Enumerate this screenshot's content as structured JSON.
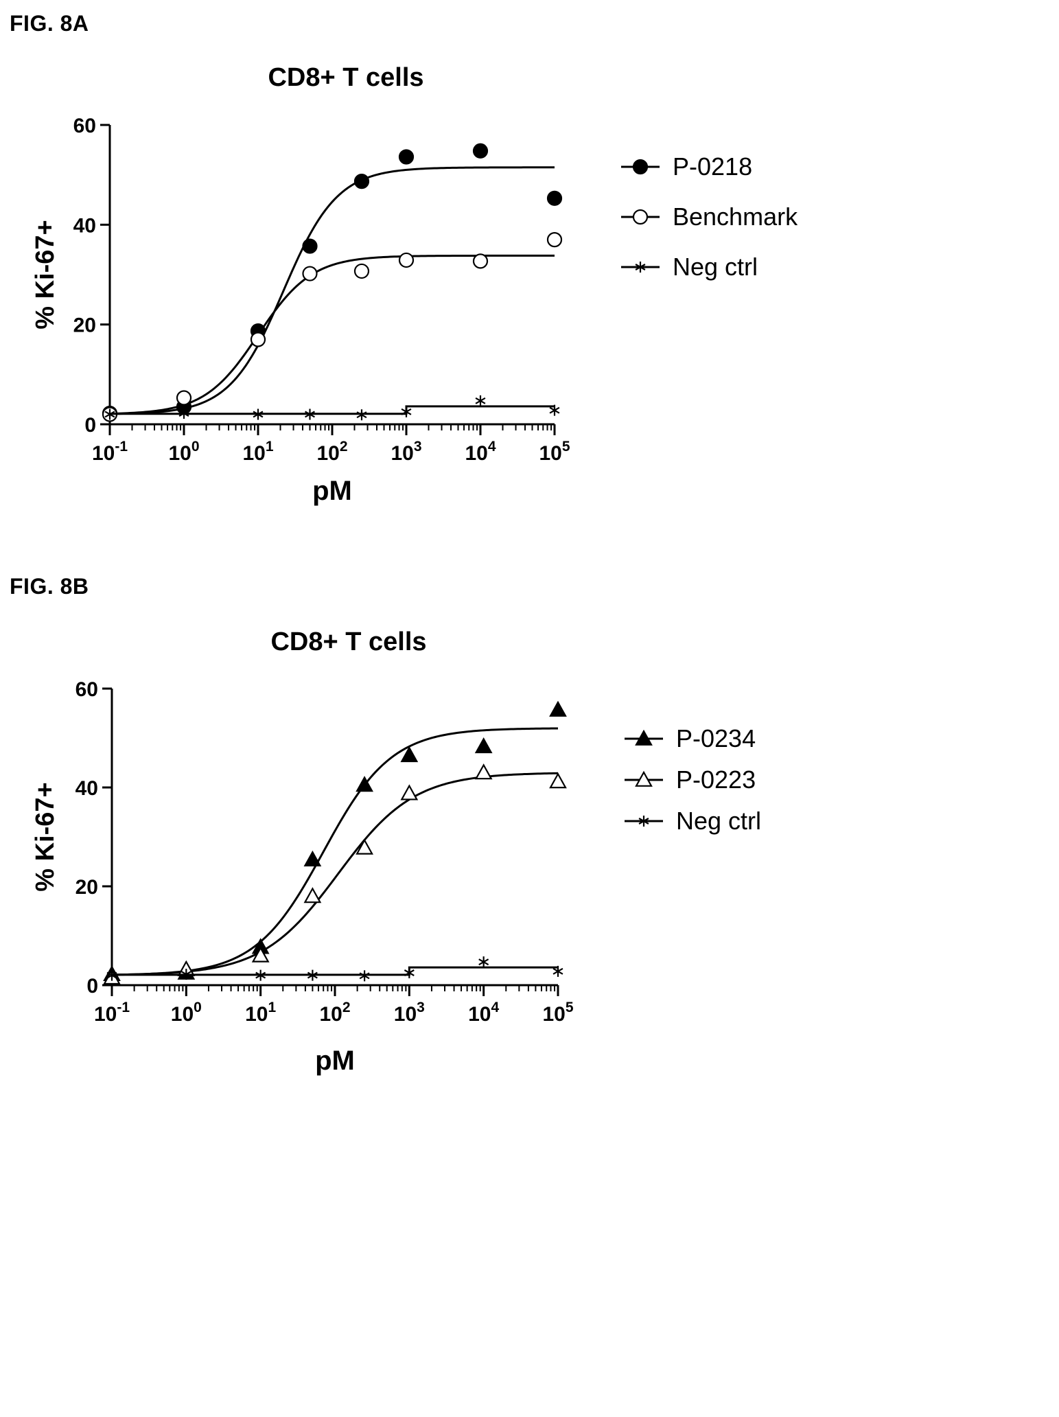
{
  "figures": [
    {
      "label": "FIG. 8A",
      "chart_data": {
        "type": "scatter",
        "title": "CD8+ T cells",
        "xlabel": "pM",
        "ylabel": "% Ki-67+",
        "xscale": "log",
        "xlim": [
          0.1,
          100000
        ],
        "ylim": [
          0,
          60
        ],
        "x_ticks": [
          {
            "value": 0.1,
            "base": "10",
            "exp": "-1"
          },
          {
            "value": 1,
            "base": "10",
            "exp": "0"
          },
          {
            "value": 10,
            "base": "10",
            "exp": "1"
          },
          {
            "value": 100,
            "base": "10",
            "exp": "2"
          },
          {
            "value": 1000,
            "base": "10",
            "exp": "3"
          },
          {
            "value": 10000,
            "base": "10",
            "exp": "4"
          },
          {
            "value": 100000,
            "base": "10",
            "exp": "5"
          }
        ],
        "y_ticks": [
          {
            "value": 0,
            "label": "0"
          },
          {
            "value": 20,
            "label": "20"
          },
          {
            "value": 40,
            "label": "40"
          },
          {
            "value": 60,
            "label": "60"
          }
        ],
        "grid": false,
        "legend_position": "right",
        "series": [
          {
            "name": "P-0218",
            "marker": "circle-filled",
            "color": "#000000",
            "x": [
              0.1,
              1,
              10,
              50,
              250,
              1000,
              10000,
              100000
            ],
            "y": [
              2.2,
              3.5,
              18.7,
              35.7,
              48.7,
              53.6,
              54.8,
              45.3
            ],
            "fit": {
              "bottom": 2.0,
              "top": 51.5,
              "ec50": 22,
              "hill": 1.2
            }
          },
          {
            "name": "Benchmark",
            "marker": "circle-open",
            "color": "#000000",
            "x": [
              0.1,
              1,
              10,
              50,
              250,
              1000,
              10000,
              100000
            ],
            "y": [
              2.0,
              5.3,
              17.0,
              30.2,
              30.7,
              32.9,
              32.7,
              37.0
            ],
            "fit": {
              "bottom": 2.0,
              "top": 33.8,
              "ec50": 10,
              "hill": 1.2
            }
          },
          {
            "name": "Neg ctrl",
            "marker": "asterisk",
            "color": "#000000",
            "x": [
              0.1,
              1,
              10,
              50,
              250,
              1000,
              10000,
              100000
            ],
            "y": [
              2.0,
              2.2,
              2.0,
              2.0,
              1.9,
              2.5,
              4.7,
              2.8
            ],
            "fit_segments": [
              {
                "x": [
                  0.1,
                  1000
                ],
                "y": 2.1
              },
              {
                "x": [
                  1000,
                  100000
                ],
                "y": 3.6
              }
            ]
          }
        ]
      }
    },
    {
      "label": "FIG. 8B",
      "chart_data": {
        "type": "scatter",
        "title": "CD8+ T cells",
        "xlabel": "pM",
        "ylabel": "% Ki-67+",
        "xscale": "log",
        "xlim": [
          0.1,
          100000
        ],
        "ylim": [
          0,
          60
        ],
        "x_ticks": [
          {
            "value": 0.1,
            "base": "10",
            "exp": "-1"
          },
          {
            "value": 1,
            "base": "10",
            "exp": "0"
          },
          {
            "value": 10,
            "base": "10",
            "exp": "1"
          },
          {
            "value": 100,
            "base": "10",
            "exp": "2"
          },
          {
            "value": 1000,
            "base": "10",
            "exp": "3"
          },
          {
            "value": 10000,
            "base": "10",
            "exp": "4"
          },
          {
            "value": 100000,
            "base": "10",
            "exp": "5"
          }
        ],
        "y_ticks": [
          {
            "value": 0,
            "label": "0"
          },
          {
            "value": 20,
            "label": "20"
          },
          {
            "value": 40,
            "label": "40"
          },
          {
            "value": 60,
            "label": "60"
          }
        ],
        "grid": false,
        "legend_position": "right",
        "series": [
          {
            "name": "P-0234",
            "marker": "triangle-filled",
            "color": "#000000",
            "x": [
              0.1,
              1,
              10,
              50,
              250,
              1000,
              10000,
              100000
            ],
            "y": [
              2.2,
              2.5,
              7.7,
              25.4,
              40.5,
              46.5,
              48.3,
              55.7
            ],
            "fit": {
              "bottom": 2.0,
              "top": 52.0,
              "ec50": 70,
              "hill": 0.95
            }
          },
          {
            "name": "P-0223",
            "marker": "triangle-open",
            "color": "#000000",
            "x": [
              0.1,
              1,
              10,
              50,
              250,
              1000,
              10000,
              100000
            ],
            "y": [
              1.5,
              3.2,
              6.0,
              18.0,
              27.8,
              38.8,
              43.0,
              41.2
            ],
            "fit": {
              "bottom": 2.0,
              "top": 43.0,
              "ec50": 110,
              "hill": 0.85
            }
          },
          {
            "name": "Neg ctrl",
            "marker": "asterisk",
            "color": "#000000",
            "x": [
              0.1,
              1,
              10,
              50,
              250,
              1000,
              10000,
              100000
            ],
            "y": [
              2.0,
              2.2,
              2.0,
              2.0,
              1.9,
              2.5,
              4.7,
              2.8
            ],
            "fit_segments": [
              {
                "x": [
                  0.1,
                  1000
                ],
                "y": 2.1
              },
              {
                "x": [
                  1000,
                  100000
                ],
                "y": 3.6
              }
            ]
          }
        ]
      }
    }
  ]
}
